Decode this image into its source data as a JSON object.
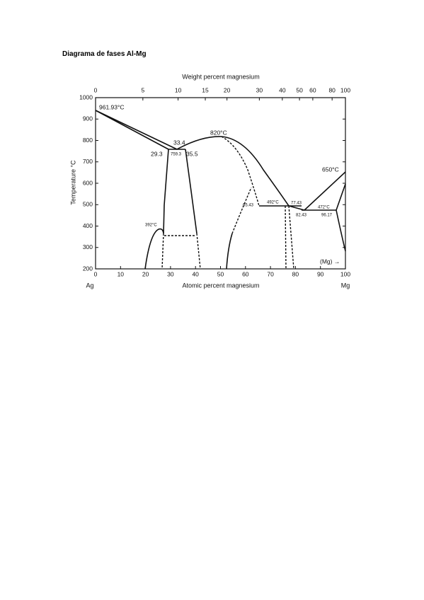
{
  "header": {
    "title": "Diagrama de fases Al-Mg"
  },
  "figure": {
    "top_axis": {
      "title": "Weight percent magnesium",
      "ticks": [
        0,
        5,
        10,
        15,
        20,
        30,
        40,
        50,
        60,
        80,
        100
      ]
    },
    "bottom_axis": {
      "title": "Atomic percent magnesium",
      "ticks": [
        0,
        10,
        20,
        30,
        40,
        50,
        60,
        70,
        80,
        90,
        100
      ],
      "left_end": "Ag",
      "right_end": "Mg"
    },
    "left_axis": {
      "title": "Temperature °C",
      "ticks": [
        1000,
        900,
        800,
        700,
        600,
        500,
        400,
        300,
        200
      ]
    },
    "annotations": [
      "961.93°C",
      "33.4",
      "29.3",
      "759.3",
      "35.5",
      "820°C",
      "650°C",
      "65.43",
      "492°C",
      "77.43",
      "82.43",
      "472°C",
      "96.17",
      "392°C",
      "(Mg) →"
    ]
  }
}
